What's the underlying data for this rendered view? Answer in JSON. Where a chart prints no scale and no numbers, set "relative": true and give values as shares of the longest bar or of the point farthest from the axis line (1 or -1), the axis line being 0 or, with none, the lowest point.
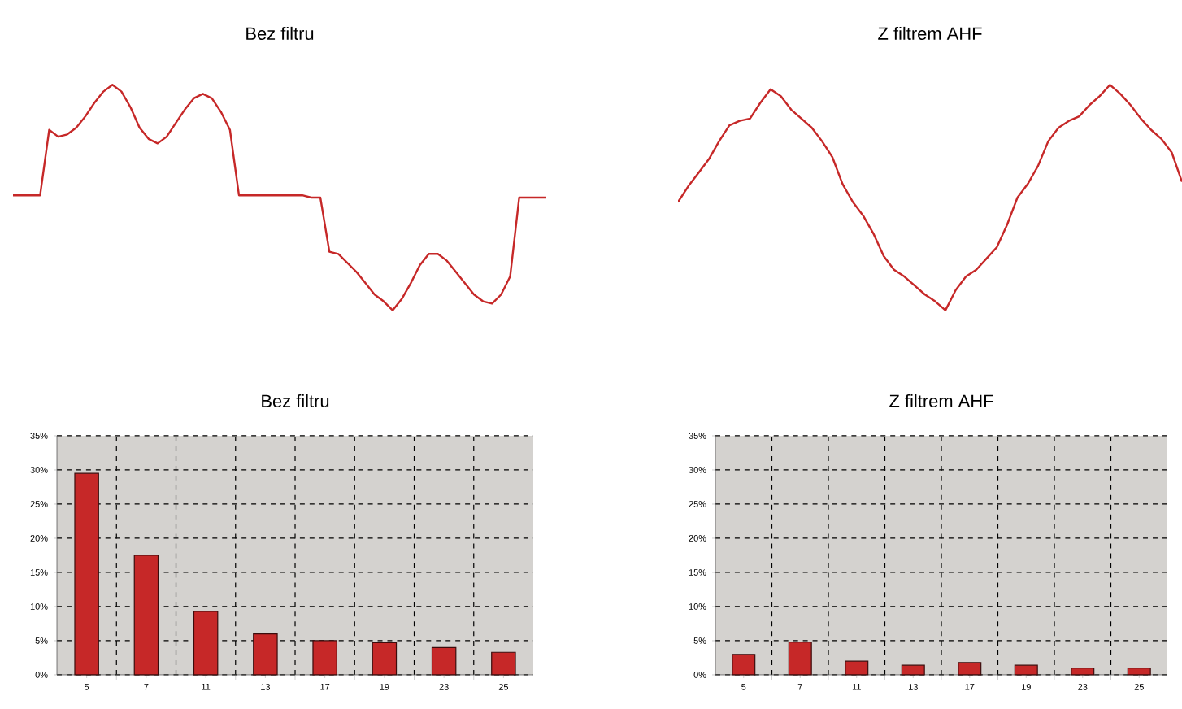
{
  "chart_data": [
    {
      "type": "line",
      "title": "Bez filtru",
      "relative": true,
      "color": "#c62828",
      "categories": [
        null,
        null,
        null,
        null,
        null,
        null,
        null,
        null,
        null,
        null,
        null,
        null,
        null,
        null,
        null,
        null,
        null,
        null,
        null,
        null,
        null,
        null,
        null,
        null,
        null,
        null,
        null,
        null,
        null,
        null,
        null,
        null,
        null,
        null,
        null,
        null,
        null,
        null,
        null,
        null,
        null,
        null,
        null,
        null,
        null,
        null,
        null,
        null,
        null,
        null,
        null,
        null,
        null,
        null,
        null,
        null,
        null,
        null,
        null,
        null
      ],
      "values": [
        0.51,
        0.51,
        0.51,
        0.51,
        0.8,
        0.77,
        0.78,
        0.81,
        0.86,
        0.92,
        0.97,
        1.0,
        0.97,
        0.9,
        0.81,
        0.76,
        0.74,
        0.77,
        0.83,
        0.89,
        0.94,
        0.96,
        0.94,
        0.88,
        0.8,
        0.51,
        0.51,
        0.51,
        0.51,
        0.51,
        0.51,
        0.51,
        0.51,
        0.5,
        0.5,
        0.26,
        0.25,
        0.21,
        0.17,
        0.12,
        0.07,
        0.04,
        0.0,
        0.05,
        0.12,
        0.2,
        0.25,
        0.25,
        0.22,
        0.17,
        0.12,
        0.07,
        0.04,
        0.03,
        0.07,
        0.15,
        0.5,
        0.5,
        0.5,
        0.5
      ]
    },
    {
      "type": "line",
      "title": "Z filtrem AHF",
      "relative": true,
      "color": "#c62828",
      "categories": [
        null,
        null,
        null,
        null,
        null,
        null,
        null,
        null,
        null,
        null,
        null,
        null,
        null,
        null,
        null,
        null,
        null,
        null,
        null,
        null,
        null,
        null,
        null,
        null,
        null,
        null,
        null,
        null,
        null,
        null,
        null,
        null,
        null,
        null,
        null,
        null,
        null,
        null,
        null,
        null,
        null,
        null,
        null,
        null,
        null,
        null,
        null,
        null,
        null,
        null
      ],
      "values": [
        0.48,
        0.55,
        0.61,
        0.67,
        0.75,
        0.82,
        0.84,
        0.85,
        0.92,
        0.98,
        0.95,
        0.89,
        0.85,
        0.81,
        0.75,
        0.68,
        0.56,
        0.48,
        0.42,
        0.34,
        0.24,
        0.18,
        0.15,
        0.11,
        0.07,
        0.04,
        0.0,
        0.09,
        0.15,
        0.18,
        0.23,
        0.28,
        0.38,
        0.5,
        0.56,
        0.64,
        0.75,
        0.81,
        0.84,
        0.86,
        0.91,
        0.95,
        1.0,
        0.96,
        0.91,
        0.85,
        0.8,
        0.76,
        0.7,
        0.57
      ]
    },
    {
      "type": "bar",
      "title": "Bez filtru",
      "color": "#c62828",
      "grid": true,
      "categories": [
        "5",
        "7",
        "11",
        "13",
        "17",
        "19",
        "23",
        "25"
      ],
      "values": [
        29.5,
        17.5,
        9.3,
        6,
        5,
        4.7,
        4,
        3.3
      ],
      "ylim": [
        0,
        35
      ],
      "yticks": [
        {
          "value": 0,
          "label": "0%"
        },
        {
          "value": 5,
          "label": "5%"
        },
        {
          "value": 10,
          "label": "10%"
        },
        {
          "value": 15,
          "label": "15%"
        },
        {
          "value": 20,
          "label": "20%"
        },
        {
          "value": 25,
          "label": "25%"
        },
        {
          "value": 30,
          "label": "30%"
        },
        {
          "value": 35,
          "label": "35%"
        }
      ]
    },
    {
      "type": "bar",
      "title": "Z filtrem AHF",
      "color": "#c62828",
      "grid": true,
      "categories": [
        "5",
        "7",
        "11",
        "13",
        "17",
        "19",
        "23",
        "25"
      ],
      "values": [
        3,
        4.8,
        2,
        1.4,
        1.8,
        1.4,
        1,
        1
      ],
      "ylim": [
        0,
        35
      ],
      "yticks": [
        {
          "value": 0,
          "label": "0%"
        },
        {
          "value": 5,
          "label": "5%"
        },
        {
          "value": 10,
          "label": "10%"
        },
        {
          "value": 15,
          "label": "15%"
        },
        {
          "value": 20,
          "label": "20%"
        },
        {
          "value": 25,
          "label": "25%"
        },
        {
          "value": 30,
          "label": "30%"
        },
        {
          "value": 35,
          "label": "35%"
        }
      ]
    }
  ]
}
